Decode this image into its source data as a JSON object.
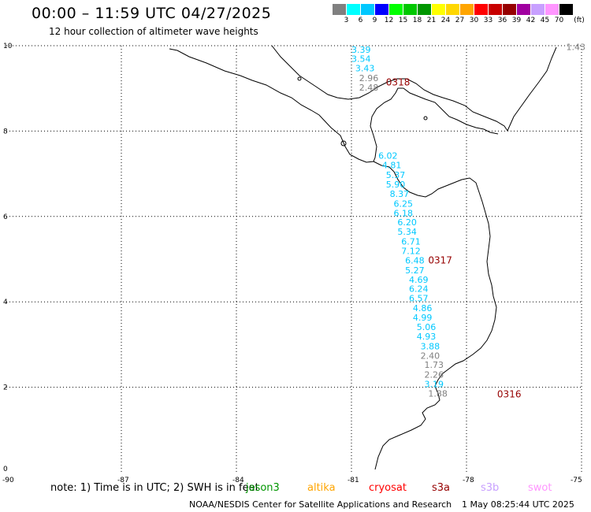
{
  "title": "00:00 – 11:59 UTC 04/27/2025",
  "subtitle": "12 hour collection of altimeter wave heights",
  "legend": {
    "unit": "(ft)",
    "bins": [
      {
        "label": "3",
        "color": "#808080"
      },
      {
        "label": "6",
        "color": "#00ffff"
      },
      {
        "label": "9",
        "color": "#00c8ff"
      },
      {
        "label": "12",
        "color": "#0000ff"
      },
      {
        "label": "15",
        "color": "#00ff00"
      },
      {
        "label": "18",
        "color": "#00c800"
      },
      {
        "label": "21",
        "color": "#009600"
      },
      {
        "label": "24",
        "color": "#ffff00"
      },
      {
        "label": "27",
        "color": "#ffd700"
      },
      {
        "label": "30",
        "color": "#ffa500"
      },
      {
        "label": "33",
        "color": "#ff0000"
      },
      {
        "label": "36",
        "color": "#c80000"
      },
      {
        "label": "39",
        "color": "#960000"
      },
      {
        "label": "42",
        "color": "#a000a0"
      },
      {
        "label": "45",
        "color": "#c8a0ff"
      },
      {
        "label": "70",
        "color": "#ff96ff"
      },
      {
        "label": "",
        "color": "#000000"
      }
    ]
  },
  "axes": {
    "lon_ticks": [
      "-90",
      "-87",
      "-84",
      "-81",
      "-78",
      "-75"
    ],
    "lat_ticks": [
      "10",
      "8",
      "6",
      "4",
      "2",
      "0"
    ],
    "lon_range": [
      -90,
      -75
    ],
    "lat_range": [
      0,
      10
    ],
    "grid": "dotted"
  },
  "wave_heights": [
    {
      "text": "3.39",
      "lon": -81.0,
      "lat": 9.83,
      "color": "#00c8ff"
    },
    {
      "text": "3.54",
      "lon": -81.0,
      "lat": 9.62,
      "color": "#00c8ff"
    },
    {
      "text": "3.43",
      "lon": -80.9,
      "lat": 9.4,
      "color": "#00c8ff"
    },
    {
      "text": "2.96",
      "lon": -80.8,
      "lat": 9.17,
      "color": "#808080"
    },
    {
      "text": "2.48",
      "lon": -80.8,
      "lat": 8.95,
      "color": "#808080"
    },
    {
      "text": "6.02",
      "lon": -80.3,
      "lat": 7.35,
      "color": "#00c8ff"
    },
    {
      "text": "4.81",
      "lon": -80.2,
      "lat": 7.13,
      "color": "#00c8ff"
    },
    {
      "text": "5.37",
      "lon": -80.1,
      "lat": 6.9,
      "color": "#00c8ff"
    },
    {
      "text": "5.90",
      "lon": -80.1,
      "lat": 6.68,
      "color": "#00c8ff"
    },
    {
      "text": "8.37",
      "lon": -80.0,
      "lat": 6.46,
      "color": "#00c8ff"
    },
    {
      "text": "6.25",
      "lon": -79.9,
      "lat": 6.23,
      "color": "#00c8ff"
    },
    {
      "text": "6.18",
      "lon": -79.9,
      "lat": 6.01,
      "color": "#00c8ff"
    },
    {
      "text": "6.20",
      "lon": -79.8,
      "lat": 5.79,
      "color": "#00c8ff"
    },
    {
      "text": "5.34",
      "lon": -79.8,
      "lat": 5.57,
      "color": "#00c8ff"
    },
    {
      "text": "6.71",
      "lon": -79.7,
      "lat": 5.34,
      "color": "#00c8ff"
    },
    {
      "text": "7.12",
      "lon": -79.7,
      "lat": 5.12,
      "color": "#00c8ff"
    },
    {
      "text": "6.48",
      "lon": -79.6,
      "lat": 4.9,
      "color": "#00c8ff"
    },
    {
      "text": "5.27",
      "lon": -79.6,
      "lat": 4.67,
      "color": "#00c8ff"
    },
    {
      "text": "4.69",
      "lon": -79.5,
      "lat": 4.45,
      "color": "#00c8ff"
    },
    {
      "text": "6.24",
      "lon": -79.5,
      "lat": 4.23,
      "color": "#00c8ff"
    },
    {
      "text": "6.57",
      "lon": -79.5,
      "lat": 4.01,
      "color": "#00c8ff"
    },
    {
      "text": "4.86",
      "lon": -79.4,
      "lat": 3.78,
      "color": "#00c8ff"
    },
    {
      "text": "4.99",
      "lon": -79.4,
      "lat": 3.56,
      "color": "#00c8ff"
    },
    {
      "text": "5.06",
      "lon": -79.3,
      "lat": 3.34,
      "color": "#00c8ff"
    },
    {
      "text": "4.93",
      "lon": -79.3,
      "lat": 3.12,
      "color": "#00c8ff"
    },
    {
      "text": "3.88",
      "lon": -79.2,
      "lat": 2.89,
      "color": "#00c8ff"
    },
    {
      "text": "2.40",
      "lon": -79.2,
      "lat": 2.67,
      "color": "#808080"
    },
    {
      "text": "1.73",
      "lon": -79.1,
      "lat": 2.45,
      "color": "#808080"
    },
    {
      "text": "2.26",
      "lon": -79.1,
      "lat": 2.22,
      "color": "#808080"
    },
    {
      "text": "3.19",
      "lon": -79.1,
      "lat": 2.0,
      "color": "#00c8ff"
    },
    {
      "text": "1.88",
      "lon": -79.0,
      "lat": 1.78,
      "color": "#808080"
    },
    {
      "text": "1.43",
      "lon": -75.4,
      "lat": 9.9,
      "color": "#808080"
    }
  ],
  "passes": [
    {
      "text": "0318",
      "lon": -80.1,
      "lat": 9.07,
      "color": "#960000"
    },
    {
      "text": "0317",
      "lon": -79.0,
      "lat": 4.9,
      "color": "#960000"
    },
    {
      "text": "0316",
      "lon": -77.2,
      "lat": 1.76,
      "color": "#960000"
    }
  ],
  "note": "note:  1) Time is in UTC;  2) SWH is in feet",
  "satellites": [
    {
      "name": "jason3",
      "color": "#009600"
    },
    {
      "name": "altika",
      "color": "#ffa500"
    },
    {
      "name": "cryosat",
      "color": "#ff0000"
    },
    {
      "name": "s3a",
      "color": "#960000"
    },
    {
      "name": "s3b",
      "color": "#c8a0ff"
    },
    {
      "name": "swot",
      "color": "#ff96ff"
    }
  ],
  "footer": "NOAA/NESDIS Center for Satellite Applications and Research",
  "footer_date": "1 May 08:25:44 UTC 2025"
}
